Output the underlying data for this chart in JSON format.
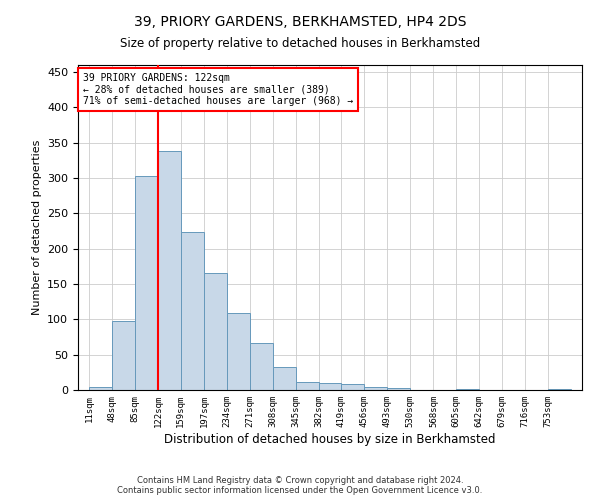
{
  "title": "39, PRIORY GARDENS, BERKHAMSTED, HP4 2DS",
  "subtitle": "Size of property relative to detached houses in Berkhamsted",
  "xlabel": "Distribution of detached houses by size in Berkhamsted",
  "ylabel": "Number of detached properties",
  "bin_labels": [
    "11sqm",
    "48sqm",
    "85sqm",
    "122sqm",
    "159sqm",
    "197sqm",
    "234sqm",
    "271sqm",
    "308sqm",
    "345sqm",
    "382sqm",
    "419sqm",
    "456sqm",
    "493sqm",
    "530sqm",
    "568sqm",
    "605sqm",
    "642sqm",
    "679sqm",
    "716sqm",
    "753sqm"
  ],
  "bin_edges": [
    11,
    48,
    85,
    122,
    159,
    197,
    234,
    271,
    308,
    345,
    382,
    419,
    456,
    493,
    530,
    568,
    605,
    642,
    679,
    716,
    753,
    790
  ],
  "bar_heights": [
    4,
    97,
    303,
    338,
    224,
    165,
    109,
    66,
    33,
    11,
    10,
    8,
    4,
    3,
    0,
    0,
    2,
    0,
    0,
    0,
    1
  ],
  "bar_color": "#c8d8e8",
  "bar_edge_color": "#6699bb",
  "property_line_x": 122,
  "property_line_color": "red",
  "annotation_line1": "39 PRIORY GARDENS: 122sqm",
  "annotation_line2": "← 28% of detached houses are smaller (389)",
  "annotation_line3": "71% of semi-detached houses are larger (968) →",
  "ylim": [
    0,
    460
  ],
  "yticks": [
    0,
    50,
    100,
    150,
    200,
    250,
    300,
    350,
    400,
    450
  ],
  "background_color": "#ffffff",
  "grid_color": "#cccccc",
  "footer_line1": "Contains HM Land Registry data © Crown copyright and database right 2024.",
  "footer_line2": "Contains public sector information licensed under the Open Government Licence v3.0."
}
